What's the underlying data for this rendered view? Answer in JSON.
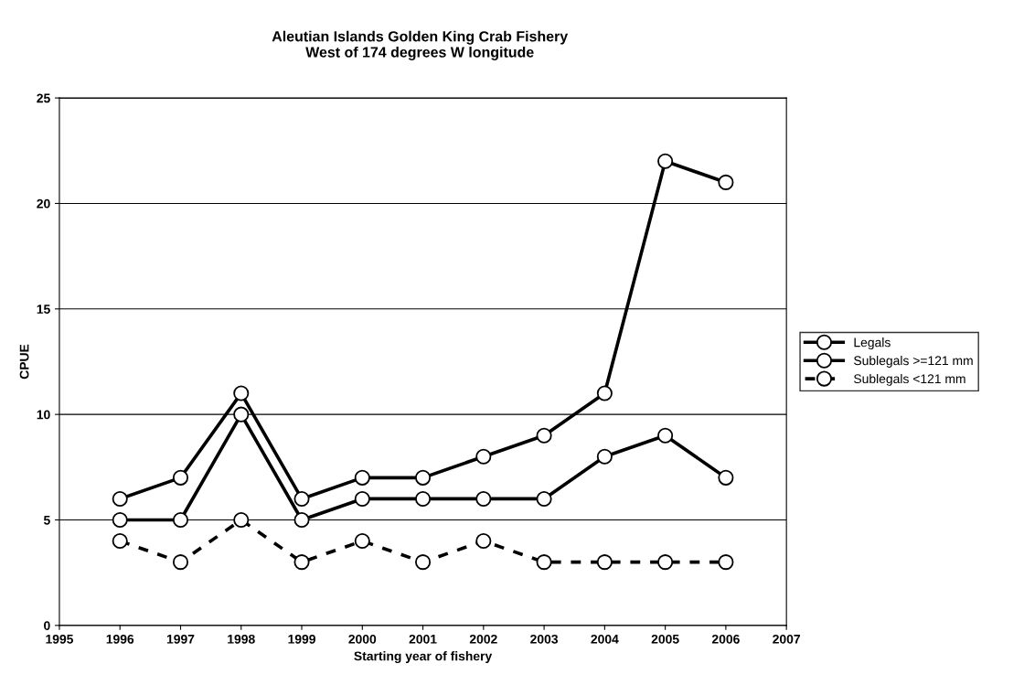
{
  "chart_data": {
    "type": "line",
    "title": "Aleutian Islands Golden King Crab Fishery\nWest of 174 degrees W longitude",
    "xlabel": "Starting year of fishery",
    "ylabel": "CPUE",
    "x": [
      1996,
      1997,
      1998,
      1999,
      2000,
      2001,
      2002,
      2003,
      2004,
      2005,
      2006
    ],
    "series": [
      {
        "name": "Legals",
        "color": "#000000",
        "marker": "circle",
        "line_style": "solid",
        "values": [
          6,
          7,
          11,
          6,
          7,
          7,
          8,
          9,
          11,
          22,
          21
        ]
      },
      {
        "name": "Sublegals >=121 mm",
        "color": "#000000",
        "marker": "circle",
        "line_style": "solid",
        "values": [
          5,
          5,
          10,
          5,
          6,
          6,
          6,
          6,
          8,
          9,
          7
        ]
      },
      {
        "name": "Sublegals <121 mm",
        "color": "#000000",
        "marker": "circle",
        "line_style": "dashed",
        "values": [
          4,
          3,
          5,
          3,
          4,
          3,
          4,
          3,
          3,
          3,
          3
        ]
      }
    ],
    "xlim": [
      1995,
      2007
    ],
    "xticks": [
      1995,
      1996,
      1997,
      1998,
      1999,
      2000,
      2001,
      2002,
      2003,
      2004,
      2005,
      2006,
      2007
    ],
    "ylim": [
      0,
      25
    ],
    "yticks": [
      0,
      5,
      10,
      15,
      20,
      25
    ],
    "grid": "y",
    "legend": "right"
  }
}
